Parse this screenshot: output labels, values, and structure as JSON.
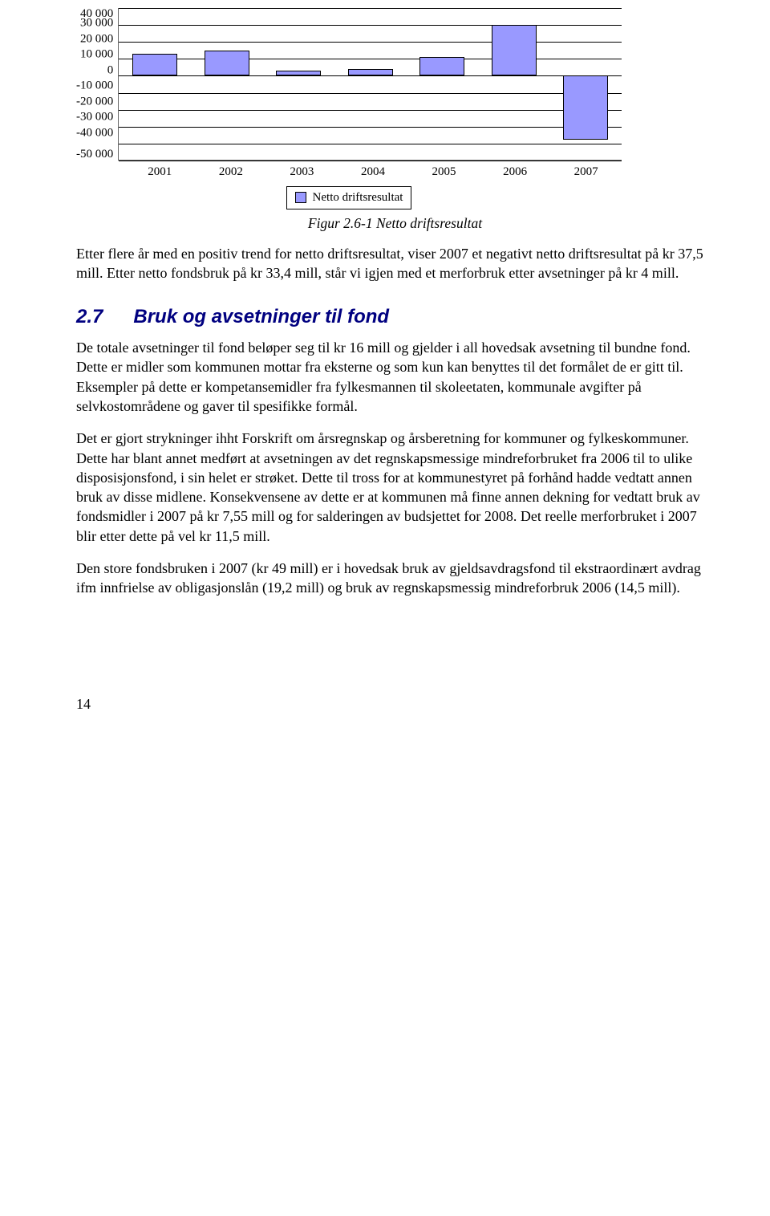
{
  "chart": {
    "type": "bar",
    "y_ticks": [
      "40 000",
      "30 000",
      "20 000",
      "10 000",
      "0",
      "-10 000",
      "-20 000",
      "-30 000",
      "-40 000",
      "-50 000"
    ],
    "ylim": [
      -50000,
      40000
    ],
    "x_labels": [
      "2001",
      "2002",
      "2003",
      "2004",
      "2005",
      "2006",
      "2007"
    ],
    "values": [
      13000,
      15000,
      3000,
      4000,
      11000,
      30000,
      -37500
    ],
    "bar_fill": "#9999ff",
    "bar_border": "#000000",
    "grid_color": "#000000",
    "legend_label": "Netto driftsresultat",
    "background_color": "#ffffff"
  },
  "figure_caption": "Figur 2.6-1 Netto driftsresultat",
  "para1": "Etter flere år med en positiv trend for netto driftsresultat, viser 2007 et negativt netto driftsresultat på kr 37,5 mill. Etter netto fondsbruk på kr 33,4 mill, står vi igjen med et merforbruk etter avsetninger på kr 4 mill.",
  "section": {
    "num": "2.7",
    "title": "Bruk og avsetninger til fond"
  },
  "para2": "De totale avsetninger til fond beløper seg til kr 16 mill og gjelder i all hovedsak avsetning til bundne fond. Dette er midler som kommunen mottar fra eksterne og som kun kan benyttes til det formålet de er gitt til. Eksempler på dette er kompetansemidler fra fylkesmannen til skoleetaten, kommunale avgifter på selvkostområdene og gaver til spesifikke formål.",
  "para3": "Det er gjort strykninger ihht Forskrift om årsregnskap og årsberetning for kommuner og fylkeskommuner. Dette har blant annet medført at avsetningen av det regnskapsmessige mindreforbruket fra 2006 til to ulike disposisjonsfond, i sin helet er strøket. Dette til tross for at kommunestyret på forhånd hadde vedtatt annen bruk av disse midlene. Konsekvensene av dette er at kommunen må finne annen dekning for vedtatt bruk av fondsmidler i 2007 på kr 7,55 mill og for salderingen av budsjettet for 2008. Det reelle merforbruket i 2007 blir etter dette på vel kr 11,5 mill.",
  "para4": "Den store fondsbruken i 2007 (kr 49 mill) er i hovedsak bruk av gjeldsavdragsfond til ekstraordinært avdrag ifm innfrielse av obligasjonslån (19,2 mill) og bruk av regnskapsmessig mindreforbruk 2006 (14,5 mill).",
  "page_number": "14"
}
